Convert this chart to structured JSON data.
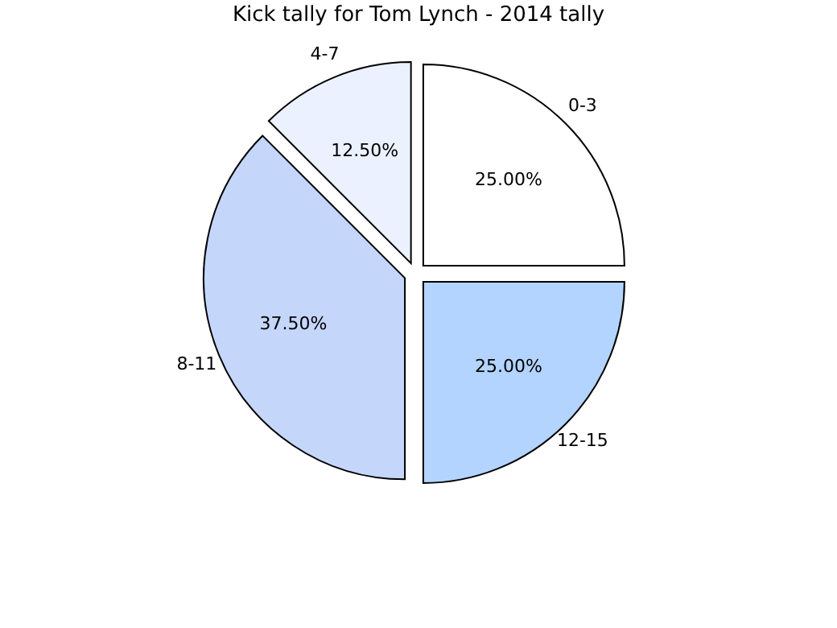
{
  "chart_data": {
    "type": "pie",
    "title": "Kick tally for Tom Lynch - 2014 tally",
    "categories": [
      "0-3",
      "12-15",
      "8-11",
      "4-7"
    ],
    "values": [
      25,
      25,
      37.5,
      12.5
    ],
    "value_labels": [
      "25.00%",
      "25.00%",
      "37.50%",
      "12.50%"
    ],
    "colors": [
      "#ffffff",
      "#b3d4ff",
      "#c5d6fb",
      "#ebf1fe"
    ],
    "legend": false
  }
}
